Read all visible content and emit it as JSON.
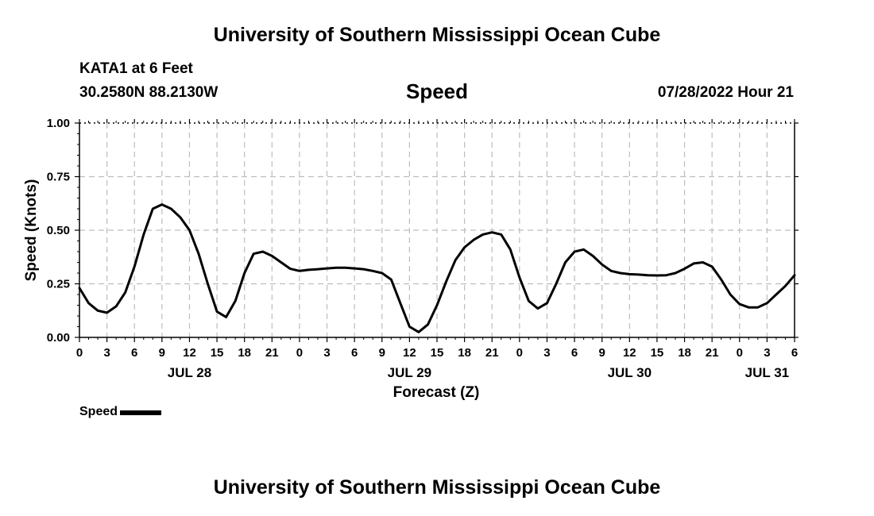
{
  "header": {
    "title": "University of Southern Mississippi Ocean Cube",
    "station": "KATA1 at 6 Feet",
    "coords": "30.2580N  88.2130W",
    "variable": "Speed",
    "datetime": "07/28/2022 Hour 21"
  },
  "footer": {
    "title": "University of Southern Mississippi Ocean Cube"
  },
  "legend": {
    "label": "Speed",
    "color": "#000000"
  },
  "chart_data": {
    "type": "line",
    "title": "Speed",
    "xlabel": "Forecast (Z)",
    "ylabel": "Speed (Knots)",
    "xlim": [
      0,
      78
    ],
    "ylim": [
      0,
      1
    ],
    "yticks": [
      0,
      0.25,
      0.5,
      0.75,
      1.0
    ],
    "ytick_labels": [
      "0.00",
      "0.25",
      "0.50",
      "0.75",
      "1.00"
    ],
    "xtick_labels": [
      "0",
      "3",
      "6",
      "9",
      "12",
      "15",
      "18",
      "21",
      "0",
      "3",
      "6",
      "9",
      "12",
      "15",
      "18",
      "21",
      "0",
      "3",
      "6",
      "9",
      "12",
      "15",
      "18",
      "21",
      "0",
      "3",
      "6"
    ],
    "date_labels": [
      {
        "label": "JUL 28",
        "hour": 12
      },
      {
        "label": "JUL 29",
        "hour": 36
      },
      {
        "label": "JUL 30",
        "hour": 60
      },
      {
        "label": "JUL 31",
        "hour": 75
      }
    ],
    "grid": true,
    "series": [
      {
        "name": "Speed",
        "color": "#000000",
        "x": [
          0,
          1,
          2,
          3,
          4,
          5,
          6,
          7,
          8,
          9,
          10,
          11,
          12,
          13,
          14,
          15,
          16,
          17,
          18,
          19,
          20,
          21,
          22,
          23,
          24,
          25,
          26,
          27,
          28,
          29,
          30,
          31,
          32,
          33,
          34,
          35,
          36,
          37,
          38,
          39,
          40,
          41,
          42,
          43,
          44,
          45,
          46,
          47,
          48,
          49,
          50,
          51,
          52,
          53,
          54,
          55,
          56,
          57,
          58,
          59,
          60,
          61,
          62,
          63,
          64,
          65,
          66,
          67,
          68,
          69,
          70,
          71,
          72,
          73,
          74,
          75,
          76,
          77,
          78
        ],
        "y": [
          0.23,
          0.16,
          0.125,
          0.115,
          0.145,
          0.21,
          0.33,
          0.48,
          0.6,
          0.62,
          0.6,
          0.56,
          0.5,
          0.39,
          0.25,
          0.12,
          0.095,
          0.17,
          0.3,
          0.39,
          0.4,
          0.38,
          0.35,
          0.32,
          0.31,
          0.315,
          0.318,
          0.322,
          0.325,
          0.325,
          0.322,
          0.318,
          0.31,
          0.3,
          0.27,
          0.16,
          0.05,
          0.025,
          0.06,
          0.15,
          0.26,
          0.36,
          0.42,
          0.455,
          0.48,
          0.49,
          0.48,
          0.41,
          0.28,
          0.17,
          0.135,
          0.16,
          0.25,
          0.35,
          0.4,
          0.41,
          0.38,
          0.34,
          0.31,
          0.3,
          0.295,
          0.293,
          0.29,
          0.289,
          0.29,
          0.3,
          0.32,
          0.345,
          0.35,
          0.33,
          0.27,
          0.2,
          0.155,
          0.14,
          0.14,
          0.16,
          0.2,
          0.24,
          0.29
        ]
      }
    ]
  }
}
